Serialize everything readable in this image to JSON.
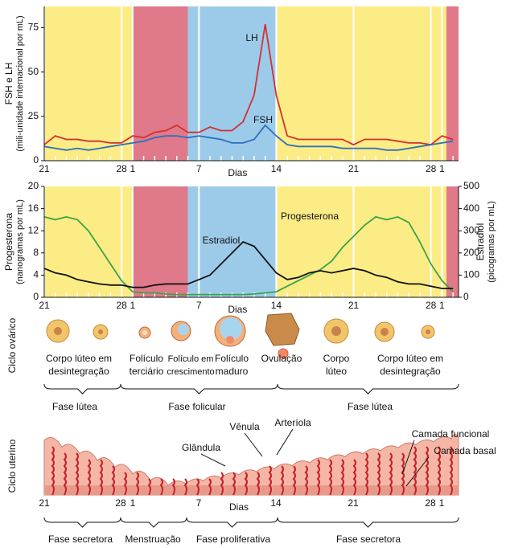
{
  "chart_data": [
    {
      "type": "line",
      "ylabel": [
        "FSH e LH",
        "(mili-unidade internacional por mL)"
      ],
      "xlabel": "Dias",
      "x": [
        0,
        1,
        2,
        3,
        4,
        5,
        6,
        7,
        8,
        9,
        10,
        11,
        12,
        13,
        14,
        15,
        16,
        17,
        18,
        19,
        20,
        21,
        22,
        23,
        24,
        25,
        26,
        27,
        28,
        29,
        30,
        31,
        32,
        33,
        34,
        35,
        36,
        37
      ],
      "xlim": [
        0,
        37.5
      ],
      "xticks": [
        {
          "value": 0,
          "label": "21"
        },
        {
          "value": 7,
          "label": "28"
        },
        {
          "value": 8,
          "label": "1"
        },
        {
          "value": 14,
          "label": "7"
        },
        {
          "value": 21,
          "label": "14"
        },
        {
          "value": 28,
          "label": "21"
        },
        {
          "value": 35,
          "label": "28"
        },
        {
          "value": 36,
          "label": "1"
        }
      ],
      "ylim": [
        0,
        87
      ],
      "yticks": [
        0,
        25,
        50,
        75
      ],
      "bands": [
        {
          "from": 0,
          "to": 8,
          "color": "#fbec85"
        },
        {
          "from": 8,
          "to": 13,
          "color": "#e0798a"
        },
        {
          "from": 13,
          "to": 21,
          "color": "#9ccbea"
        },
        {
          "from": 21,
          "to": 36.4,
          "color": "#fbec85"
        },
        {
          "from": 36.4,
          "to": 37.5,
          "color": "#e0798a"
        }
      ],
      "series": [
        {
          "name": "LH",
          "color": "#d62f2f",
          "values": [
            9,
            14,
            12,
            12,
            11,
            11,
            10,
            10,
            14,
            13,
            16,
            17,
            20,
            16,
            16,
            19,
            17,
            17,
            22,
            37,
            77,
            37,
            14,
            12,
            12,
            12,
            12,
            12,
            9,
            12,
            12,
            12,
            11,
            10,
            10,
            9,
            14,
            12
          ]
        },
        {
          "name": "FSH",
          "color": "#2f6fc0",
          "values": [
            8,
            7,
            6,
            7,
            6,
            7,
            8,
            9,
            10,
            11,
            13,
            14,
            14,
            13,
            14,
            13,
            12,
            10,
            10,
            12,
            20,
            14,
            9,
            8,
            8,
            8,
            8,
            7,
            7,
            7,
            7,
            6,
            6,
            7,
            8,
            9,
            10,
            11
          ]
        }
      ]
    },
    {
      "type": "line",
      "ylabel": [
        "Progesterona",
        "(nanogramas por mL)"
      ],
      "y2label": [
        "Estradiol",
        "(picogramas por mL)"
      ],
      "xlabel": "Dias",
      "x": [
        0,
        1,
        2,
        3,
        4,
        5,
        6,
        7,
        8,
        9,
        10,
        11,
        12,
        13,
        14,
        15,
        16,
        17,
        18,
        19,
        20,
        21,
        22,
        23,
        24,
        25,
        26,
        27,
        28,
        29,
        30,
        31,
        32,
        33,
        34,
        35,
        36,
        37
      ],
      "xlim": [
        0,
        37.5
      ],
      "xticks": [
        {
          "value": 0,
          "label": "21"
        },
        {
          "value": 7,
          "label": "28"
        },
        {
          "value": 8,
          "label": "1"
        },
        {
          "value": 14,
          "label": "7"
        },
        {
          "value": 21,
          "label": "14"
        },
        {
          "value": 28,
          "label": "21"
        },
        {
          "value": 35,
          "label": "28"
        },
        {
          "value": 36,
          "label": "1"
        }
      ],
      "ylim": [
        0,
        20
      ],
      "yticks": [
        0,
        4,
        8,
        12,
        16,
        20
      ],
      "y2lim": [
        0,
        500
      ],
      "y2ticks": [
        0,
        100,
        200,
        300,
        400,
        500
      ],
      "bands": [
        {
          "from": 0,
          "to": 8,
          "color": "#fbec85"
        },
        {
          "from": 8,
          "to": 13,
          "color": "#e0798a"
        },
        {
          "from": 13,
          "to": 21,
          "color": "#9ccbea"
        },
        {
          "from": 21,
          "to": 36.4,
          "color": "#fbec85"
        },
        {
          "from": 36.4,
          "to": 37.5,
          "color": "#e0798a"
        }
      ],
      "series": [
        {
          "name": "Progesterona",
          "color": "#3aa34a",
          "values": [
            14.5,
            14,
            14.5,
            14,
            12,
            9,
            6,
            3,
            1,
            0.8,
            0.8,
            0.6,
            0.5,
            0.5,
            0.5,
            0.5,
            0.5,
            0.5,
            0.5,
            0.6,
            0.8,
            1,
            2,
            3,
            4,
            5,
            6.5,
            9,
            11,
            13,
            14.5,
            14,
            14.5,
            13.5,
            10,
            6,
            3,
            1
          ]
        },
        {
          "name": "Estradiol",
          "color": "#111111",
          "axis": "y2",
          "values": [
            130,
            110,
            100,
            80,
            70,
            60,
            55,
            55,
            45,
            45,
            55,
            60,
            60,
            60,
            80,
            100,
            150,
            200,
            250,
            230,
            170,
            110,
            80,
            90,
            110,
            120,
            110,
            120,
            130,
            120,
            100,
            90,
            70,
            60,
            60,
            50,
            40,
            40
          ]
        }
      ]
    }
  ],
  "ovarian_cycle": {
    "label": "Ciclo ovárico",
    "stages": [
      [
        "Corpo lúteo em",
        "desintegração"
      ],
      [
        "Folículo",
        "terciário"
      ],
      [
        "Folículo em",
        "crescimento"
      ],
      [
        "Folículo",
        "maduro"
      ],
      [
        "Ovulação"
      ],
      [
        "Corpo",
        "lúteo"
      ],
      [
        "Corpo lúteo em",
        "desintegração"
      ]
    ],
    "phases": [
      "Fase lútea",
      "Fase folicular",
      "Fase lútea"
    ]
  },
  "uterine_cycle": {
    "label": "Ciclo uterino",
    "annotations": [
      "Vênula",
      "Arteríola",
      "Glândula",
      "Camada funcional",
      "Camada basal"
    ],
    "axis_labels": [
      "21",
      "28",
      "1",
      "7",
      "14",
      "21",
      "28",
      "1"
    ],
    "axis_title": "Dias",
    "phases": [
      "Fase secretora",
      "Menstruação",
      "Fase proliferativa",
      "Fase secretora"
    ]
  }
}
